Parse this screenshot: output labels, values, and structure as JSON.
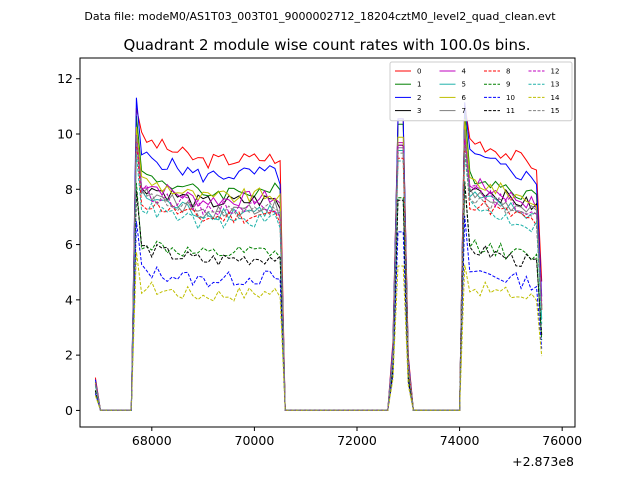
{
  "suptitle": "Data file: modeM0/AS1T03_003T01_9000002712_18204cztM0_level2_quad_clean.evt",
  "chart_data": {
    "type": "line",
    "title": "Quadrant 2 module wise count rates with 100.0s bins.",
    "xlabel": "",
    "ylabel": "",
    "x_offset_label": "+2.873e8",
    "xlim": [
      66600,
      76250
    ],
    "ylim": [
      -0.6,
      12.75
    ],
    "x_ticks": [
      68000,
      70000,
      72000,
      74000,
      76000
    ],
    "x_tick_labels": [
      "68000",
      "70000",
      "72000",
      "74000",
      "76000"
    ],
    "y_ticks": [
      0,
      2,
      4,
      6,
      8,
      10,
      12
    ],
    "y_tick_labels": [
      "0",
      "2",
      "4",
      "6",
      "8",
      "10",
      "12"
    ],
    "legend_position": "top-right",
    "legend_columns": 4,
    "series": [
      {
        "name": "0",
        "color": "#ff0000",
        "dash": "solid",
        "level": 9.9,
        "peak": 11.1
      },
      {
        "name": "1",
        "color": "#008000",
        "dash": "solid",
        "level": 8.6,
        "peak": 10.9
      },
      {
        "name": "2",
        "color": "#0000ff",
        "dash": "solid",
        "level": 9.3,
        "peak": 11.1
      },
      {
        "name": "3",
        "color": "#000000",
        "dash": "solid",
        "level": 8.2,
        "peak": 10.1
      },
      {
        "name": "4",
        "color": "#bf00bf",
        "dash": "solid",
        "level": 8.3,
        "peak": 10.2
      },
      {
        "name": "5",
        "color": "#20b2aa",
        "dash": "solid",
        "level": 7.8,
        "peak": 9.9
      },
      {
        "name": "6",
        "color": "#bfbf00",
        "dash": "solid",
        "level": 8.4,
        "peak": 10.4
      },
      {
        "name": "7",
        "color": "#808080",
        "dash": "solid",
        "level": 7.9,
        "peak": 10.0
      },
      {
        "name": "8",
        "color": "#ff0000",
        "dash": "dashed",
        "level": 7.6,
        "peak": 9.6
      },
      {
        "name": "9",
        "color": "#008000",
        "dash": "dashed",
        "level": 6.1,
        "peak": 8.1
      },
      {
        "name": "10",
        "color": "#0000ff",
        "dash": "dashed",
        "level": 5.1,
        "peak": 6.8
      },
      {
        "name": "11",
        "color": "#000000",
        "dash": "dashed",
        "level": 5.9,
        "peak": 8.0
      },
      {
        "name": "12",
        "color": "#bf00bf",
        "dash": "dashed",
        "level": 8.0,
        "peak": 10.1
      },
      {
        "name": "13",
        "color": "#20b2aa",
        "dash": "dashed",
        "level": 7.4,
        "peak": 9.5
      },
      {
        "name": "14",
        "color": "#bfbf00",
        "dash": "dashed",
        "level": 4.5,
        "peak": 5.5
      },
      {
        "name": "15",
        "color": "#808080",
        "dash": "dashed",
        "level": 7.8,
        "peak": 9.8
      }
    ],
    "time_structure": {
      "bin_size_s": 100,
      "start": 66900,
      "end": 75600,
      "start_value_fraction": 0.12,
      "active_segments": [
        {
          "from": 67700,
          "to": 70500,
          "trend": "decay"
        },
        {
          "from": 72700,
          "to": 73000,
          "trend": "spike"
        },
        {
          "from": 74100,
          "to": 75600,
          "trend": "decay"
        }
      ]
    }
  }
}
